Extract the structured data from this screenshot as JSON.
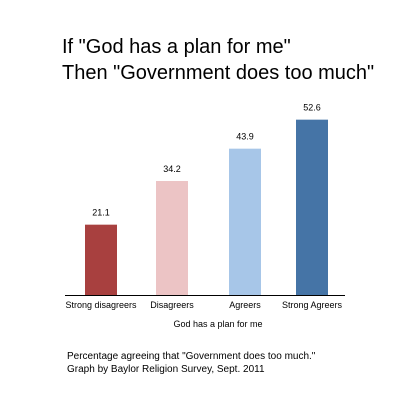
{
  "chart_data": {
    "type": "bar",
    "title_lines": [
      "If \"God has a plan for me\"",
      "Then \"Government does too much\""
    ],
    "categories": [
      "Strong disagreers",
      "Disagreers",
      "Agreers",
      "Strong Agreers"
    ],
    "values": [
      21.1,
      34.2,
      43.9,
      52.6
    ],
    "value_labels": [
      "21.1",
      "34.2",
      "43.9",
      "52.6"
    ],
    "bar_colors": [
      "#a8403f",
      "#ecc4c5",
      "#a7c6e8",
      "#4574a6"
    ],
    "xlabel": "God has a plan for me",
    "ylabel": "",
    "ylim": [
      0,
      60
    ],
    "grid": false,
    "legend": "none"
  },
  "caption": {
    "line1": "Percentage agreeing that \"Government does too much.\"",
    "line2": "Graph by Baylor Religion Survey, Sept. 2011"
  }
}
